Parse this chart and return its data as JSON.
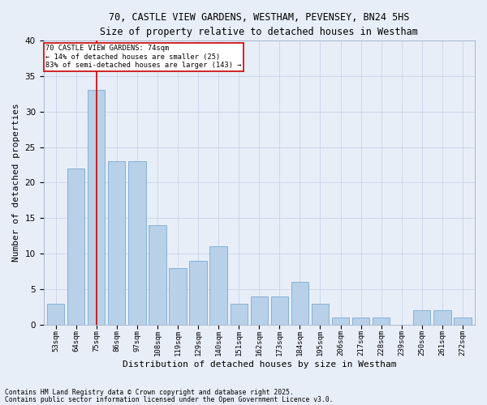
{
  "title1": "70, CASTLE VIEW GARDENS, WESTHAM, PEVENSEY, BN24 5HS",
  "title2": "Size of property relative to detached houses in Westham",
  "xlabel": "Distribution of detached houses by size in Westham",
  "ylabel": "Number of detached properties",
  "categories": [
    "53sqm",
    "64sqm",
    "75sqm",
    "86sqm",
    "97sqm",
    "108sqm",
    "119sqm",
    "129sqm",
    "140sqm",
    "151sqm",
    "162sqm",
    "173sqm",
    "184sqm",
    "195sqm",
    "206sqm",
    "217sqm",
    "228sqm",
    "239sqm",
    "250sqm",
    "261sqm",
    "272sqm"
  ],
  "values": [
    3,
    22,
    33,
    23,
    23,
    14,
    8,
    9,
    11,
    3,
    4,
    4,
    6,
    3,
    1,
    1,
    1,
    0,
    2,
    2,
    1
  ],
  "bar_color": "#b8d0e8",
  "bar_edge_color": "#7aaad0",
  "vline_x_index": 2,
  "vline_color": "#cc0000",
  "annotation_line1": "70 CASTLE VIEW GARDENS: 74sqm",
  "annotation_line2": "← 14% of detached houses are smaller (25)",
  "annotation_line3": "83% of semi-detached houses are larger (143) →",
  "annotation_box_edge": "#cc0000",
  "footer1": "Contains HM Land Registry data © Crown copyright and database right 2025.",
  "footer2": "Contains public sector information licensed under the Open Government Licence v3.0.",
  "bg_color": "#e8eef8",
  "plot_bg_color": "#e8eef8",
  "grid_color": "#c8d4e8",
  "ylim": [
    0,
    40
  ],
  "yticks": [
    0,
    5,
    10,
    15,
    20,
    25,
    30,
    35,
    40
  ]
}
